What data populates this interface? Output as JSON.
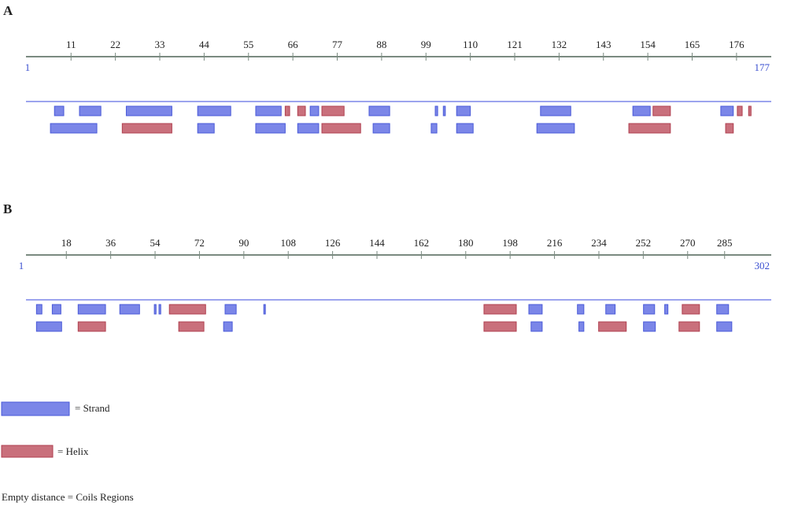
{
  "panels": [
    {
      "label": "A",
      "range": [
        1,
        177
      ],
      "ticks": [
        11,
        22,
        33,
        44,
        55,
        66,
        77,
        88,
        99,
        110,
        121,
        132,
        143,
        154,
        165,
        176
      ],
      "rows": [
        {
          "strand": [
            [
              6.9,
              9.2
            ],
            [
              13.1,
              18.4
            ],
            [
              24.7,
              36
            ],
            [
              42.4,
              50.6
            ],
            [
              56.8,
              63.1
            ],
            [
              70.3,
              72.4
            ],
            [
              84.9,
              90
            ],
            [
              101.3,
              101.9
            ],
            [
              103.3,
              103.8
            ],
            [
              106.6,
              110
            ],
            [
              127.4,
              134.9
            ],
            [
              150.3,
              154.6
            ],
            [
              172.1,
              175.2
            ]
          ],
          "helix": [
            [
              64.1,
              65.2
            ],
            [
              67.2,
              69.1
            ],
            [
              73.2,
              78.7
            ],
            [
              155.3,
              159.6
            ],
            [
              176.2,
              177.4
            ],
            [
              179,
              179.6
            ]
          ]
        },
        {
          "strand": [
            [
              5.9,
              17.4
            ],
            [
              42.4,
              46.5
            ],
            [
              56.8,
              64.1
            ],
            [
              67.2,
              72.4
            ],
            [
              85.9,
              90
            ],
            [
              100.3,
              101.7
            ],
            [
              106.6,
              110.7
            ],
            [
              126.5,
              135.8
            ]
          ],
          "helix": [
            [
              23.7,
              36
            ],
            [
              73.2,
              82.8
            ],
            [
              149.3,
              159.6
            ],
            [
              173.3,
              175.2
            ]
          ]
        }
      ]
    },
    {
      "label": "B",
      "range": [
        1,
        302
      ],
      "ticks": [
        18,
        36,
        54,
        72,
        90,
        108,
        126,
        144,
        162,
        180,
        198,
        216,
        234,
        252,
        270,
        285
      ],
      "rows": [
        {
          "strand": [
            [
              5.9,
              8.1
            ],
            [
              12.3,
              15.8
            ],
            [
              22.8,
              33.9
            ],
            [
              39.7,
              47.7
            ],
            [
              53.7,
              54.4
            ],
            [
              55.6,
              56.3
            ],
            [
              82.4,
              86.9
            ],
            [
              98.1,
              98.7
            ],
            [
              205.6,
              211
            ],
            [
              225.3,
              227.9
            ],
            [
              236.8,
              240.6
            ],
            [
              252.1,
              256.6
            ],
            [
              260.7,
              262
            ],
            [
              281.8,
              286.6
            ]
          ],
          "helix": [
            [
              59.8,
              74.5
            ],
            [
              187.4,
              200.5
            ],
            [
              267.8,
              274.8
            ]
          ]
        },
        {
          "strand": [
            [
              5.9,
              16.1
            ],
            [
              81.8,
              85.3
            ],
            [
              206.5,
              211
            ],
            [
              225.9,
              227.9
            ],
            [
              252.1,
              256.9
            ],
            [
              281.8,
              287.9
            ]
          ],
          "helix": [
            [
              22.8,
              33.9
            ],
            [
              63.6,
              73.8
            ],
            [
              187.4,
              200.5
            ],
            [
              233.9,
              245.1
            ],
            [
              266.5,
              274.8
            ]
          ]
        }
      ]
    }
  ],
  "legend": {
    "strand": {
      "label": "= Strand",
      "color": "#7b86e8"
    },
    "helix": {
      "label": "= Helix",
      "color": "#c9707c"
    }
  },
  "note": "Empty distance = Coils Regions"
}
